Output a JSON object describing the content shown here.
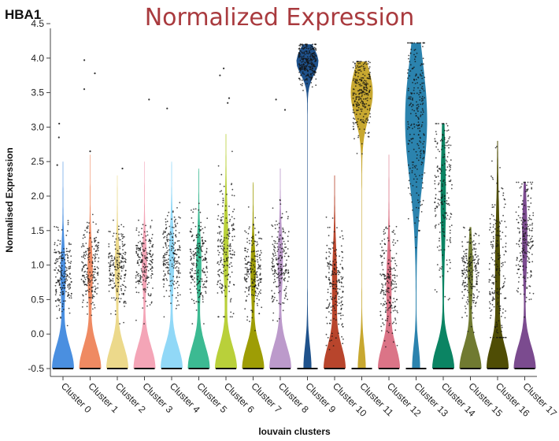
{
  "chart_data": {
    "type": "violin",
    "gene": "HBA1",
    "title": "Normalized Expression",
    "xlabel": "louvain clusters",
    "ylabel": "Normalised Expression",
    "ylim": [
      -0.5,
      4.5
    ],
    "yticks": [
      "-0.5",
      "0.0",
      "0.5",
      "1.0",
      "1.5",
      "2.0",
      "2.5",
      "3.0",
      "3.5",
      "4.0",
      "4.5"
    ],
    "grid": false,
    "legend": "none",
    "categories": [
      "Cluster 0",
      "Cluster 1",
      "Cluster 2",
      "Cluster 3",
      "Cluster 4",
      "Cluster 5",
      "Cluster 6",
      "Cluster 7",
      "Cluster 8",
      "Cluster 9",
      "Cluster 10",
      "Cluster 11",
      "Cluster 12",
      "Cluster 13",
      "Cluster 14",
      "Cluster 15",
      "Cluster 16",
      "Cluster 17"
    ],
    "series": [
      {
        "cluster": "Cluster 0",
        "color": "#4a8fe0",
        "max": 2.5,
        "upper_mode": 0.85,
        "upper_range": [
          0.4,
          1.6
        ],
        "outliers": [
          3.05,
          2.85,
          2.45
        ]
      },
      {
        "cluster": "Cluster 1",
        "color": "#ef8a62",
        "max": 2.6,
        "upper_mode": 0.9,
        "upper_range": [
          0.5,
          1.7
        ],
        "outliers": [
          3.97,
          3.78,
          3.55,
          2.65
        ]
      },
      {
        "cluster": "Cluster 2",
        "color": "#ecd98b",
        "max": 2.3,
        "upper_mode": 0.95,
        "upper_range": [
          0.5,
          1.6
        ],
        "outliers": [
          2.4
        ]
      },
      {
        "cluster": "Cluster 3",
        "color": "#f4a5b7",
        "max": 2.5,
        "upper_mode": 1.0,
        "upper_range": [
          0.5,
          1.6
        ],
        "outliers": [
          3.4
        ]
      },
      {
        "cluster": "Cluster 4",
        "color": "#91d8f7",
        "max": 2.5,
        "upper_mode": 1.1,
        "upper_range": [
          0.5,
          1.8
        ],
        "outliers": [
          3.27
        ]
      },
      {
        "cluster": "Cluster 5",
        "color": "#3cba92",
        "max": 2.4,
        "upper_mode": 1.0,
        "upper_range": [
          0.5,
          1.8
        ],
        "outliers": []
      },
      {
        "cluster": "Cluster 6",
        "color": "#b9d03a",
        "max": 2.9,
        "upper_mode": 1.2,
        "upper_range": [
          0.6,
          2.3
        ],
        "outliers": [
          3.85,
          3.75,
          3.42,
          3.35
        ]
      },
      {
        "cluster": "Cluster 7",
        "color": "#9e9d05",
        "max": 2.2,
        "upper_mode": 0.9,
        "upper_range": [
          0.4,
          1.6
        ],
        "outliers": []
      },
      {
        "cluster": "Cluster 8",
        "color": "#bc9acb",
        "max": 2.4,
        "upper_mode": 1.05,
        "upper_range": [
          0.5,
          1.8
        ],
        "outliers": [
          3.25,
          3.4
        ]
      },
      {
        "cluster": "Cluster 9",
        "color": "#1f528c",
        "max": 4.2,
        "upper_mode": 3.95,
        "upper_range": [
          3.6,
          4.2
        ],
        "outliers": []
      },
      {
        "cluster": "Cluster 10",
        "color": "#b8452c",
        "max": 2.3,
        "upper_mode": 0.7,
        "upper_range": [
          0.1,
          1.7
        ],
        "outliers": []
      },
      {
        "cluster": "Cluster 11",
        "color": "#c8a830",
        "max": 3.95,
        "upper_mode": 3.5,
        "upper_range": [
          2.8,
          3.95
        ],
        "outliers": []
      },
      {
        "cluster": "Cluster 12",
        "color": "#db7487",
        "max": 2.6,
        "upper_mode": 0.7,
        "upper_range": [
          0.1,
          1.6
        ],
        "outliers": []
      },
      {
        "cluster": "Cluster 13",
        "color": "#2b83ae",
        "max": 4.22,
        "upper_mode": 3.1,
        "upper_range": [
          1.5,
          4.2
        ],
        "outliers": []
      },
      {
        "cluster": "Cluster 14",
        "color": "#0b8463",
        "max": 3.05,
        "upper_mode": 2.0,
        "upper_range": [
          0.5,
          3.0
        ],
        "outliers": []
      },
      {
        "cluster": "Cluster 15",
        "color": "#707a31",
        "max": 1.55,
        "upper_mode": 0.9,
        "upper_range": [
          0.3,
          1.55
        ],
        "outliers": []
      },
      {
        "cluster": "Cluster 16",
        "color": "#4f4d05",
        "max": 2.8,
        "upper_mode": 0.9,
        "upper_range": [
          0.3,
          2.8
        ],
        "outliers": []
      },
      {
        "cluster": "Cluster 17",
        "color": "#7b4b8f",
        "max": 2.2,
        "upper_mode": 1.4,
        "upper_range": [
          0.5,
          2.2
        ],
        "outliers": []
      }
    ]
  }
}
